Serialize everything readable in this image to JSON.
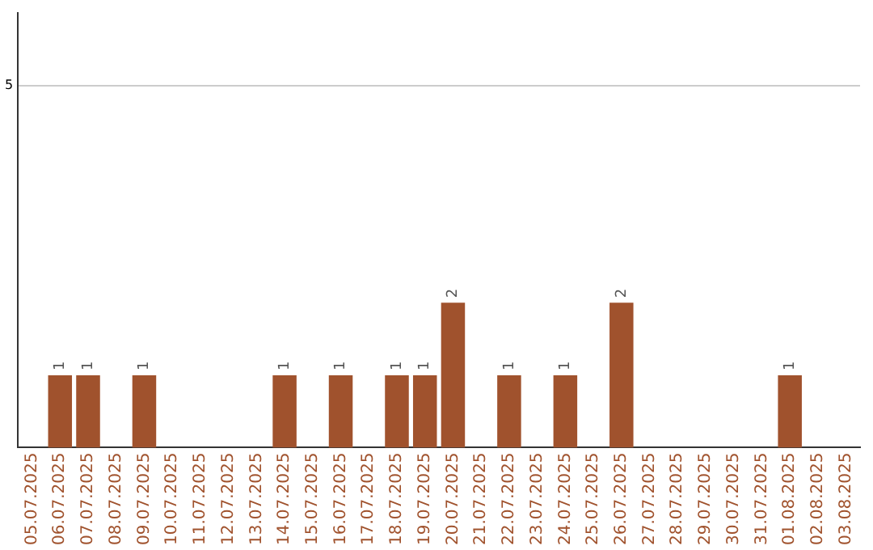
{
  "chart_data": {
    "type": "bar",
    "categories": [
      "05.07.2025",
      "06.07.2025",
      "07.07.2025",
      "08.07.2025",
      "09.07.2025",
      "10.07.2025",
      "11.07.2025",
      "12.07.2025",
      "13.07.2025",
      "14.07.2025",
      "15.07.2025",
      "16.07.2025",
      "17.07.2025",
      "18.07.2025",
      "19.07.2025",
      "20.07.2025",
      "21.07.2025",
      "22.07.2025",
      "23.07.2025",
      "24.07.2025",
      "25.07.2025",
      "26.07.2025",
      "27.07.2025",
      "28.07.2025",
      "29.07.2025",
      "30.07.2025",
      "31.07.2025",
      "01.08.2025",
      "02.08.2025",
      "03.08.2025"
    ],
    "values": [
      0,
      1,
      1,
      0,
      1,
      0,
      0,
      0,
      0,
      1,
      0,
      1,
      0,
      1,
      1,
      2,
      0,
      1,
      0,
      1,
      0,
      2,
      0,
      0,
      0,
      0,
      0,
      1,
      0,
      0
    ],
    "value_labels": [
      null,
      "1",
      "1",
      null,
      "1",
      null,
      null,
      null,
      null,
      "1",
      null,
      "1",
      null,
      "1",
      "1",
      "2",
      null,
      "1",
      null,
      "1",
      null,
      "2",
      null,
      null,
      null,
      null,
      null,
      "1",
      null,
      null
    ],
    "color": "#a0522d",
    "ylim": [
      0,
      6
    ],
    "yticks": [
      5
    ],
    "grid": "y",
    "legend": false
  }
}
